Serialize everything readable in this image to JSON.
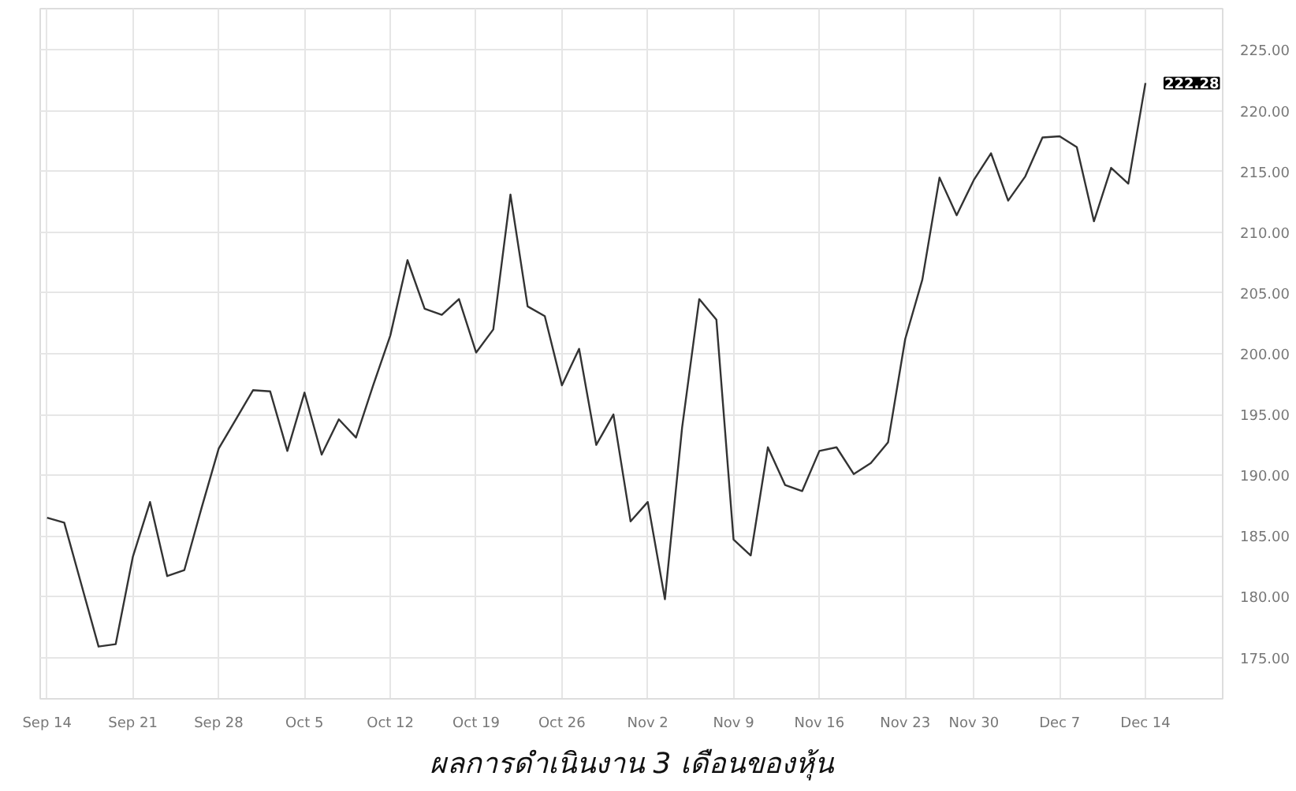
{
  "chart_data": {
    "type": "line",
    "title": "ผลการดำเนินงาน 3 เดือนของหุ้น",
    "categories": [
      "Sep 14",
      null,
      null,
      null,
      null,
      "Sep 21",
      null,
      null,
      null,
      null,
      "Sep 28",
      null,
      null,
      null,
      null,
      "Oct 5",
      null,
      null,
      null,
      null,
      "Oct 12",
      null,
      null,
      null,
      null,
      "Oct 19",
      null,
      null,
      null,
      null,
      "Oct 26",
      null,
      null,
      null,
      null,
      "Nov 2",
      null,
      null,
      null,
      null,
      "Nov 9",
      null,
      null,
      null,
      null,
      "Nov 16",
      null,
      null,
      null,
      null,
      "Nov 23",
      null,
      null,
      null,
      "Nov 30",
      null,
      null,
      null,
      null,
      "Dec 7",
      null,
      null,
      null,
      null,
      "Dec 14"
    ],
    "series": [
      {
        "color": "#333333",
        "values": [
          186.5,
          186.1,
          181.0,
          175.9,
          176.1,
          183.3,
          187.8,
          181.7,
          182.2,
          187.3,
          192.2,
          194.6,
          197.0,
          196.9,
          192.0,
          196.8,
          191.7,
          194.6,
          193.1,
          197.4,
          201.5,
          207.7,
          203.7,
          203.2,
          204.5,
          200.1,
          202.0,
          213.1,
          203.9,
          203.1,
          197.4,
          200.4,
          192.5,
          195.0,
          186.2,
          187.8,
          179.8,
          193.9,
          204.5,
          202.8,
          184.7,
          183.4,
          192.3,
          189.2,
          188.7,
          192.0,
          192.3,
          190.1,
          191.0,
          192.7,
          201.2,
          206.1,
          214.5,
          211.4,
          214.3,
          216.5,
          212.6,
          214.6,
          217.8,
          217.9,
          217.0,
          210.9,
          215.3,
          214.0,
          222.28
        ]
      }
    ],
    "ylim": [
      171.6,
      228.4
    ],
    "yticks": [
      {
        "value": 175,
        "label": "175.00"
      },
      {
        "value": 180,
        "label": "180.00"
      },
      {
        "value": 185,
        "label": "185.00"
      },
      {
        "value": 190,
        "label": "190.00"
      },
      {
        "value": 195,
        "label": "195.00"
      },
      {
        "value": 200,
        "label": "200.00"
      },
      {
        "value": 205,
        "label": "205.00"
      },
      {
        "value": 210,
        "label": "210.00"
      },
      {
        "value": 215,
        "label": "215.00"
      },
      {
        "value": 220,
        "label": "220.00"
      },
      {
        "value": 225,
        "label": "225.00"
      }
    ],
    "annotations": [
      {
        "text": "222.28",
        "x": "Dec 14",
        "y": 222.28
      }
    ],
    "grid": true,
    "marker": "none",
    "line_style": "solid"
  }
}
